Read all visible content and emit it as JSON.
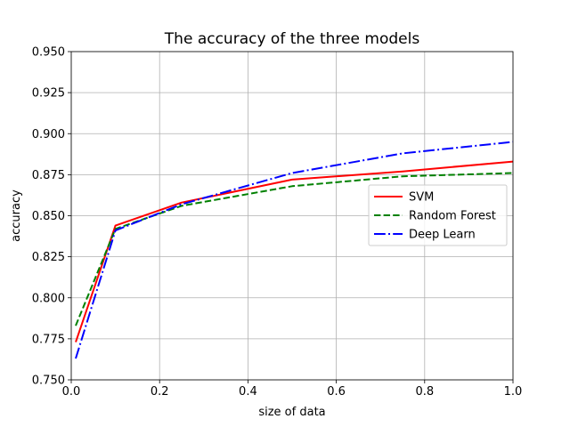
{
  "chart_data": {
    "type": "line",
    "title": "The accuracy of the three models",
    "xlabel": "size of data",
    "ylabel": "accuracy",
    "xlim": [
      0.0,
      1.0
    ],
    "ylim": [
      0.75,
      0.95
    ],
    "xticks": [
      0.0,
      0.2,
      0.4,
      0.6,
      0.8,
      1.0
    ],
    "xtick_labels": [
      "0.0",
      "0.2",
      "0.4",
      "0.6",
      "0.8",
      "1.0"
    ],
    "yticks": [
      0.75,
      0.775,
      0.8,
      0.825,
      0.85,
      0.875,
      0.9,
      0.925,
      0.95
    ],
    "ytick_labels": [
      "0.750",
      "0.775",
      "0.800",
      "0.825",
      "0.850",
      "0.875",
      "0.900",
      "0.925",
      "0.950"
    ],
    "grid": true,
    "legend_position": "center-right",
    "series": [
      {
        "name": "SVM",
        "color": "#ff0000",
        "style": "solid",
        "x": [
          0.01,
          0.1,
          0.25,
          0.5,
          0.75,
          1.0
        ],
        "y": [
          0.773,
          0.844,
          0.858,
          0.872,
          0.877,
          0.883
        ]
      },
      {
        "name": "Random Forest",
        "color": "#008000",
        "style": "dashed",
        "x": [
          0.01,
          0.1,
          0.25,
          0.5,
          0.75,
          1.0
        ],
        "y": [
          0.783,
          0.842,
          0.856,
          0.868,
          0.874,
          0.876
        ]
      },
      {
        "name": "Deep Learn",
        "color": "#0000ff",
        "style": "dashdot",
        "x": [
          0.01,
          0.1,
          0.25,
          0.5,
          0.75,
          1.0
        ],
        "y": [
          0.763,
          0.841,
          0.857,
          0.876,
          0.888,
          0.895
        ]
      }
    ]
  }
}
